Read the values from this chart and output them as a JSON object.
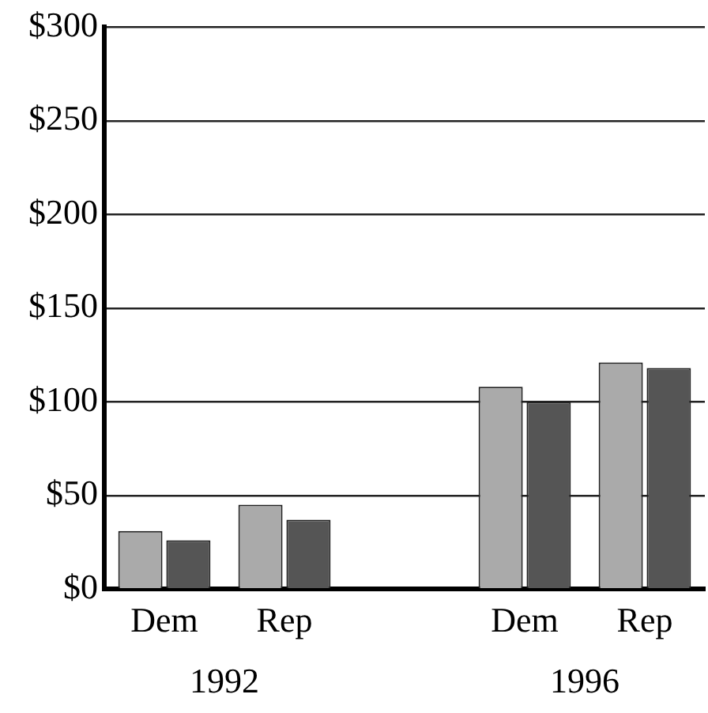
{
  "chart_data": {
    "type": "bar",
    "categories": [
      "Dem",
      "Rep",
      null,
      "Dem",
      "Rep"
    ],
    "series": [
      {
        "color": "#aaaaaa",
        "values": [
          31,
          45,
          null,
          108,
          121
        ]
      },
      {
        "color": "#555555",
        "values": [
          26,
          37,
          null,
          100,
          118
        ]
      }
    ],
    "ylim": [
      0,
      300
    ],
    "yticks": [
      {
        "value": 0,
        "label": "$0"
      },
      {
        "value": 50,
        "label": "$50"
      },
      {
        "value": 100,
        "label": "$100"
      },
      {
        "value": 150,
        "label": "$150"
      },
      {
        "value": 200,
        "label": "$200"
      },
      {
        "value": 250,
        "label": "$250"
      },
      {
        "value": 300,
        "label": "$300"
      }
    ],
    "grid": "y",
    "legend": false,
    "annotations": [
      "1992",
      "1996"
    ]
  }
}
